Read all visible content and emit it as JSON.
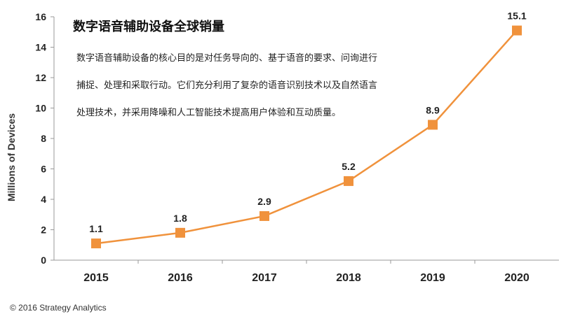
{
  "chart_data": {
    "type": "line",
    "title": "数字语音辅助设备全球销量",
    "description": "数字语音辅助设备的核心目的是对任务导向的、基于语音的要求、问询进行捕捉、处理和采取行动。它们充分利用了复杂的语音识别技术以及自然语言处理技术，并采用降噪和人工智能技术提高用户体验和互动质量。",
    "xlabel": "",
    "ylabel": "Millions of Devices",
    "categories": [
      "2015",
      "2016",
      "2017",
      "2018",
      "2019",
      "2020"
    ],
    "values": [
      1.1,
      1.8,
      2.9,
      5.2,
      8.9,
      15.1
    ],
    "data_labels": [
      "1.1",
      "1.8",
      "2.9",
      "5.2",
      "8.9",
      "15.1"
    ],
    "ylim": [
      0,
      16
    ],
    "yticks": [
      "0",
      "2",
      "4",
      "6",
      "8",
      "10",
      "12",
      "14",
      "16"
    ],
    "grid": false,
    "legend": "none",
    "series_color": "#f0923c",
    "marker": "square"
  },
  "footer": {
    "copyright": "© 2016 Strategy Analytics"
  }
}
